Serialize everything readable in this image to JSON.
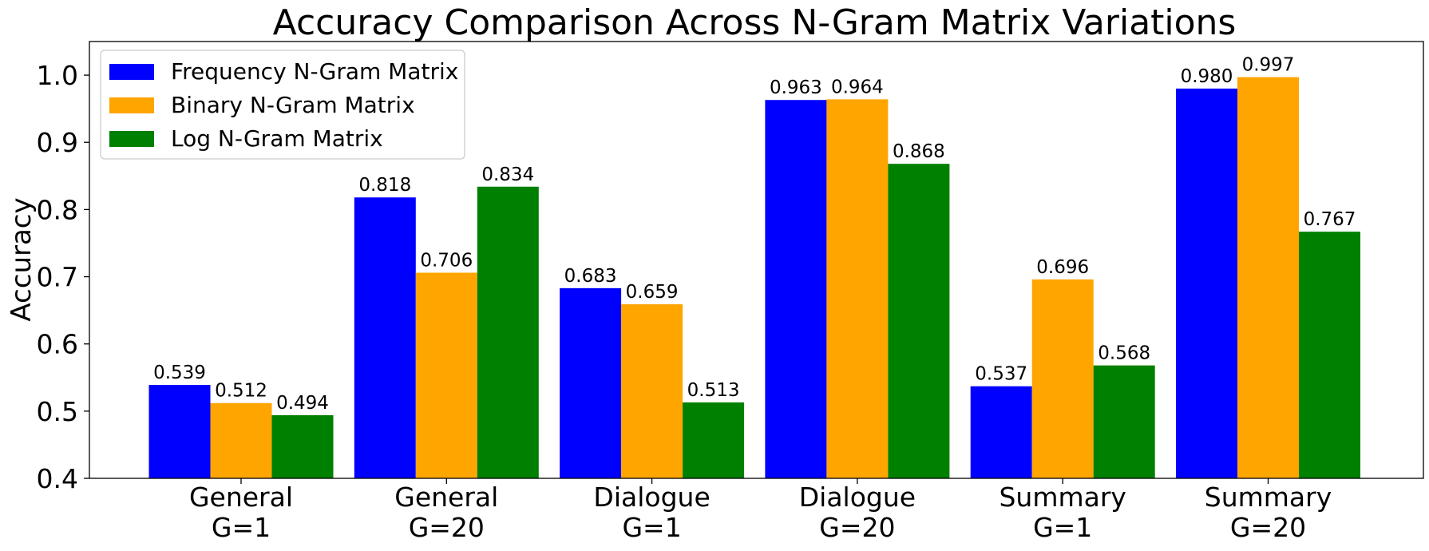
{
  "chart_data": {
    "type": "bar",
    "title": "Accuracy Comparison Across N-Gram Matrix Variations",
    "xlabel": "",
    "ylabel": "Accuracy",
    "ylim": [
      0.4,
      1.05
    ],
    "yticks": [
      0.4,
      0.5,
      0.6,
      0.7,
      0.8,
      0.9,
      1.0
    ],
    "ytick_labels": [
      "0.4",
      "0.5",
      "0.6",
      "0.7",
      "0.8",
      "0.9",
      "1.0"
    ],
    "grid": false,
    "legend_position": "top-left",
    "categories": [
      [
        "General",
        "G=1"
      ],
      [
        "General",
        "G=20"
      ],
      [
        "Dialogue",
        "G=1"
      ],
      [
        "Dialogue",
        "G=20"
      ],
      [
        "Summary",
        "G=1"
      ],
      [
        "Summary",
        "G=20"
      ]
    ],
    "series": [
      {
        "name": "Frequency N-Gram Matrix",
        "color": "#0000ff",
        "values": [
          0.539,
          0.818,
          0.683,
          0.963,
          0.537,
          0.98
        ],
        "labels": [
          "0.539",
          "0.818",
          "0.683",
          "0.963",
          "0.537",
          "0.980"
        ]
      },
      {
        "name": "Binary N-Gram Matrix",
        "color": "#ffa500",
        "values": [
          0.512,
          0.706,
          0.659,
          0.964,
          0.696,
          0.997
        ],
        "labels": [
          "0.512",
          "0.706",
          "0.659",
          "0.964",
          "0.696",
          "0.997"
        ]
      },
      {
        "name": "Log N-Gram Matrix",
        "color": "#008000",
        "values": [
          0.494,
          0.834,
          0.513,
          0.868,
          0.568,
          0.767
        ],
        "labels": [
          "0.494",
          "0.834",
          "0.513",
          "0.868",
          "0.568",
          "0.767"
        ]
      }
    ]
  }
}
